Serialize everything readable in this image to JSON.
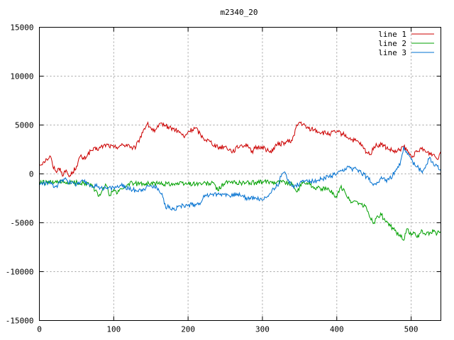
{
  "chart_data": {
    "type": "line",
    "title": "m2340_20",
    "xlabel": "",
    "ylabel": "",
    "xlim": [
      0,
      540
    ],
    "ylim": [
      -15000,
      15000
    ],
    "x_ticks": [
      "0",
      "100",
      "200",
      "300",
      "400",
      "500"
    ],
    "y_ticks": [
      "15000",
      "10000",
      "5000",
      "0",
      "-5000",
      "-10000",
      "-15000"
    ],
    "grid": true,
    "legend_position": "top-right",
    "series": [
      {
        "name": "line 1",
        "color": "#cc0000",
        "points": [
          [
            0,
            900
          ],
          [
            5,
            1200
          ],
          [
            10,
            1500
          ],
          [
            15,
            1800
          ],
          [
            18,
            800
          ],
          [
            22,
            300
          ],
          [
            28,
            600
          ],
          [
            32,
            -200
          ],
          [
            36,
            400
          ],
          [
            40,
            -300
          ],
          [
            45,
            200
          ],
          [
            50,
            800
          ],
          [
            55,
            1800
          ],
          [
            60,
            1500
          ],
          [
            65,
            2000
          ],
          [
            70,
            2400
          ],
          [
            80,
            2600
          ],
          [
            90,
            3000
          ],
          [
            100,
            2700
          ],
          [
            110,
            2900
          ],
          [
            120,
            3000
          ],
          [
            125,
            2500
          ],
          [
            130,
            2800
          ],
          [
            135,
            3600
          ],
          [
            140,
            4500
          ],
          [
            145,
            5100
          ],
          [
            150,
            4700
          ],
          [
            155,
            4300
          ],
          [
            160,
            4800
          ],
          [
            165,
            5200
          ],
          [
            170,
            4900
          ],
          [
            180,
            4600
          ],
          [
            190,
            4200
          ],
          [
            195,
            3700
          ],
          [
            200,
            4300
          ],
          [
            210,
            4700
          ],
          [
            220,
            3700
          ],
          [
            230,
            3300
          ],
          [
            240,
            2700
          ],
          [
            250,
            2800
          ],
          [
            260,
            2300
          ],
          [
            270,
            2900
          ],
          [
            280,
            3000
          ],
          [
            285,
            2200
          ],
          [
            290,
            2600
          ],
          [
            300,
            2800
          ],
          [
            310,
            2200
          ],
          [
            320,
            3000
          ],
          [
            330,
            3200
          ],
          [
            340,
            3400
          ],
          [
            345,
            4700
          ],
          [
            350,
            5300
          ],
          [
            360,
            4700
          ],
          [
            370,
            4500
          ],
          [
            380,
            4200
          ],
          [
            390,
            4100
          ],
          [
            400,
            4300
          ],
          [
            410,
            4000
          ],
          [
            420,
            3500
          ],
          [
            430,
            3200
          ],
          [
            440,
            2200
          ],
          [
            445,
            2000
          ],
          [
            450,
            2800
          ],
          [
            460,
            3000
          ],
          [
            470,
            2500
          ],
          [
            480,
            2200
          ],
          [
            490,
            2800
          ],
          [
            500,
            1800
          ],
          [
            510,
            2300
          ],
          [
            515,
            2700
          ],
          [
            520,
            2200
          ],
          [
            530,
            2000
          ],
          [
            535,
            1500
          ],
          [
            540,
            2300
          ]
        ]
      },
      {
        "name": "line 2",
        "color": "#00a000",
        "points": [
          [
            0,
            -900
          ],
          [
            20,
            -900
          ],
          [
            40,
            -900
          ],
          [
            60,
            -900
          ],
          [
            70,
            -1200
          ],
          [
            75,
            -1700
          ],
          [
            80,
            -2300
          ],
          [
            85,
            -1600
          ],
          [
            90,
            -1200
          ],
          [
            95,
            -2200
          ],
          [
            100,
            -1600
          ],
          [
            105,
            -2000
          ],
          [
            110,
            -1500
          ],
          [
            115,
            -1400
          ],
          [
            120,
            -1000
          ],
          [
            140,
            -1000
          ],
          [
            160,
            -1000
          ],
          [
            180,
            -1000
          ],
          [
            200,
            -1000
          ],
          [
            220,
            -1000
          ],
          [
            235,
            -1000
          ],
          [
            240,
            -1700
          ],
          [
            245,
            -1200
          ],
          [
            250,
            -900
          ],
          [
            270,
            -900
          ],
          [
            290,
            -900
          ],
          [
            310,
            -800
          ],
          [
            320,
            -800
          ],
          [
            330,
            -800
          ],
          [
            340,
            -1100
          ],
          [
            345,
            -1700
          ],
          [
            350,
            -1400
          ],
          [
            355,
            -800
          ],
          [
            360,
            -900
          ],
          [
            370,
            -1400
          ],
          [
            380,
            -1500
          ],
          [
            390,
            -1700
          ],
          [
            395,
            -1900
          ],
          [
            400,
            -2400
          ],
          [
            405,
            -1400
          ],
          [
            410,
            -1600
          ],
          [
            415,
            -2500
          ],
          [
            420,
            -2900
          ],
          [
            425,
            -2800
          ],
          [
            430,
            -3000
          ],
          [
            440,
            -3500
          ],
          [
            445,
            -4500
          ],
          [
            450,
            -5000
          ],
          [
            455,
            -4300
          ],
          [
            460,
            -4200
          ],
          [
            465,
            -4800
          ],
          [
            470,
            -5300
          ],
          [
            475,
            -5500
          ],
          [
            480,
            -6000
          ],
          [
            485,
            -6200
          ],
          [
            490,
            -6800
          ],
          [
            495,
            -5600
          ],
          [
            500,
            -6300
          ],
          [
            505,
            -6000
          ],
          [
            510,
            -6500
          ],
          [
            515,
            -5800
          ],
          [
            520,
            -6200
          ],
          [
            525,
            -6000
          ],
          [
            530,
            -5900
          ],
          [
            535,
            -6100
          ],
          [
            540,
            -5900
          ]
        ]
      },
      {
        "name": "line 3",
        "color": "#0070d0",
        "points": [
          [
            0,
            -1000
          ],
          [
            10,
            -900
          ],
          [
            15,
            -1000
          ],
          [
            20,
            -1400
          ],
          [
            25,
            -1100
          ],
          [
            30,
            -700
          ],
          [
            35,
            -400
          ],
          [
            40,
            -900
          ],
          [
            45,
            -800
          ],
          [
            50,
            -1100
          ],
          [
            55,
            -900
          ],
          [
            60,
            -800
          ],
          [
            65,
            -1000
          ],
          [
            70,
            -1200
          ],
          [
            80,
            -1300
          ],
          [
            90,
            -1500
          ],
          [
            100,
            -1400
          ],
          [
            110,
            -1200
          ],
          [
            120,
            -1500
          ],
          [
            130,
            -1700
          ],
          [
            140,
            -1500
          ],
          [
            150,
            -1200
          ],
          [
            160,
            -1500
          ],
          [
            165,
            -2000
          ],
          [
            170,
            -3500
          ],
          [
            175,
            -3300
          ],
          [
            180,
            -3600
          ],
          [
            190,
            -3300
          ],
          [
            200,
            -3200
          ],
          [
            210,
            -3100
          ],
          [
            215,
            -3000
          ],
          [
            220,
            -2500
          ],
          [
            225,
            -2200
          ],
          [
            230,
            -2000
          ],
          [
            240,
            -2100
          ],
          [
            250,
            -2000
          ],
          [
            255,
            -2200
          ],
          [
            260,
            -2300
          ],
          [
            265,
            -2000
          ],
          [
            270,
            -2200
          ],
          [
            280,
            -2500
          ],
          [
            290,
            -2400
          ],
          [
            300,
            -2700
          ],
          [
            310,
            -2000
          ],
          [
            315,
            -1500
          ],
          [
            320,
            -1200
          ],
          [
            325,
            -300
          ],
          [
            330,
            200
          ],
          [
            335,
            -600
          ],
          [
            340,
            -1300
          ],
          [
            350,
            -1000
          ],
          [
            360,
            -600
          ],
          [
            370,
            -800
          ],
          [
            380,
            -500
          ],
          [
            390,
            -300
          ],
          [
            400,
            0
          ],
          [
            410,
            300
          ],
          [
            415,
            800
          ],
          [
            420,
            500
          ],
          [
            430,
            400
          ],
          [
            440,
            -300
          ],
          [
            450,
            -1000
          ],
          [
            455,
            -900
          ],
          [
            460,
            -300
          ],
          [
            465,
            -700
          ],
          [
            470,
            -600
          ],
          [
            475,
            -200
          ],
          [
            480,
            500
          ],
          [
            485,
            900
          ],
          [
            490,
            2800
          ],
          [
            495,
            2000
          ],
          [
            500,
            1500
          ],
          [
            505,
            900
          ],
          [
            510,
            600
          ],
          [
            515,
            100
          ],
          [
            520,
            900
          ],
          [
            525,
            1700
          ],
          [
            530,
            1000
          ],
          [
            535,
            800
          ],
          [
            540,
            500
          ]
        ]
      }
    ]
  }
}
